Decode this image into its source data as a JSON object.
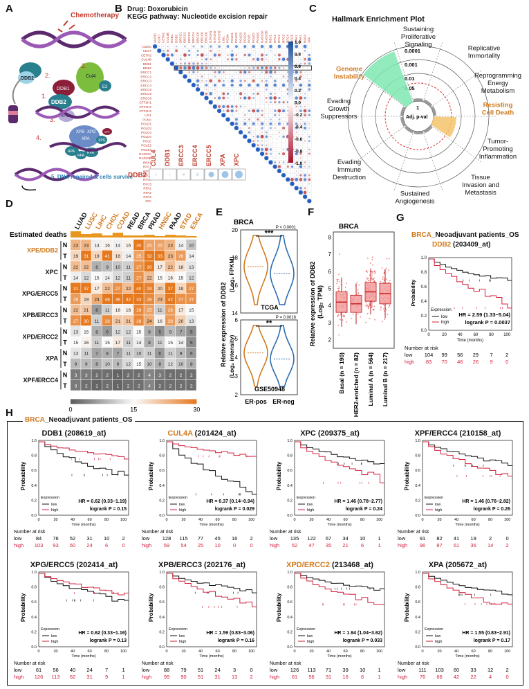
{
  "colors": {
    "orange": "#d07a1e",
    "red": "#c0392b",
    "low_line": "#111111",
    "high_line": "#d21f3c",
    "blue": "#2b6cb0"
  },
  "A": {
    "label": "A",
    "chemo": "Chemotherapy",
    "ddb2": "DDB2",
    "ddb1": "DDB1",
    "cul4": "Cul4",
    "e2": "E2",
    "ddb2b": "DDB2",
    "xpc": "XPC",
    "dna_label": "5. DNA repaired &\ncells survive",
    "steps": [
      "2.",
      "1.",
      "2.",
      "3.",
      "4.",
      "5."
    ],
    "proteins": [
      "XPB",
      "XPD",
      "XPA",
      "RPA",
      "XPG",
      "RPA",
      "RPA",
      "XPF"
    ]
  },
  "B": {
    "label": "B",
    "line1": "Drug: Doxorubicin",
    "line2": "KEGG pathway: Nucleotide excision repair",
    "genes": [
      "AUDIC",
      "CDK7",
      "CETN2",
      "CUL4B",
      "DDB1",
      "DDB2",
      "ERCC1",
      "ERCC2",
      "ERCC3",
      "ERCC4",
      "ERCC5",
      "ERCC6",
      "ERCC8",
      "GTF2H1",
      "GTF2H2",
      "GTF2H3",
      "LIG1",
      "PCNA",
      "POLD1",
      "POLD2",
      "POLD3",
      "POLD4",
      "POLE",
      "POLE2",
      "POLE3",
      "RAD23A",
      "RAD23B",
      "RBX1",
      "RFC1",
      "RFC2",
      "RFC3",
      "RFC4",
      "RFC5",
      "RPA1",
      "RPA2",
      "RPA3",
      "XPA"
    ],
    "scale": [
      "1.0",
      "0.8",
      "0.6",
      "0.4",
      "0.2",
      "0.0",
      "-0.2",
      "-0.4",
      "-0.6",
      "-0.8",
      "-1.0"
    ],
    "ddb2_row_label": "DDB2",
    "ddb2_cols": [
      "CUL4",
      "DDB1",
      "ERCC3",
      "ERCC4",
      "ERCC5",
      "XPA",
      "XPC"
    ]
  },
  "C": {
    "label": "C",
    "title": "Hallmark Enrichment Plot",
    "hallmarks": [
      "Sustaining\nProliferative\nSignaling",
      "Replicative\nImmortality",
      "Reprogramming\nEnergy\nMetabolism",
      "Resisting\nCell Death",
      "Tumor-\nPromoting\nInflammation",
      "Tissue\nInvasion and\nMetastasis",
      "Sustained\nAngiogenesis",
      "Evading\nImmune\nDestruction",
      "Evading\nGrowth\nSuppressors",
      "Genome\nInstability"
    ],
    "rings": [
      "0.0001",
      "0.001",
      "0.01",
      "0.05",
      "1"
    ],
    "center": "Adj. p-val"
  },
  "D": {
    "label": "D",
    "estimated_deaths": "Estimated deaths",
    "cancers": [
      "LUAD",
      "LUSC",
      "LIHC",
      "CHOL",
      "COAD",
      "READ",
      "BRCA",
      "PRAD",
      "HNSC",
      "PAAD",
      "STAD",
      "ESCA"
    ],
    "cancer_highlight": [
      false,
      true,
      true,
      true,
      true,
      false,
      false,
      false,
      true,
      false,
      true,
      true
    ],
    "groups": [
      "XPE/DDB2",
      "XPC",
      "XPG/ERCC5",
      "XPB/ERCC3",
      "XPD/ERCC2",
      "XPA",
      "XPF/ERCC4"
    ],
    "rows": [
      {
        "g": 0,
        "nt": "N",
        "v": [
          23,
          23,
          14,
          16,
          14,
          16,
          30,
          25,
          25,
          23,
          14,
          10
        ]
      },
      {
        "g": 0,
        "nt": "T",
        "v": [
          19,
          31,
          19,
          41,
          18,
          14,
          25,
          32,
          33,
          23,
          26,
          14
        ]
      },
      {
        "g": 1,
        "nt": "N",
        "v": [
          22,
          22,
          8,
          9,
          10,
          11,
          27,
          30,
          17,
          22,
          18,
          13
        ]
      },
      {
        "g": 1,
        "nt": "T",
        "v": [
          14,
          12,
          15,
          14,
          12,
          11,
          27,
          22,
          15,
          16,
          15,
          12
        ]
      },
      {
        "g": 2,
        "nt": "N",
        "v": [
          31,
          37,
          17,
          22,
          27,
          22,
          40,
          29,
          20,
          37,
          19,
          27
        ]
      },
      {
        "g": 2,
        "nt": "T",
        "v": [
          26,
          19,
          24,
          48,
          36,
          42,
          33,
          28,
          23,
          42,
          27,
          27
        ]
      },
      {
        "g": 3,
        "nt": "N",
        "v": [
          22,
          21,
          6,
          11,
          16,
          16,
          28,
          25,
          11,
          26,
          17,
          15
        ]
      },
      {
        "g": 3,
        "nt": "T",
        "v": [
          27,
          30,
          11,
          28,
          21,
          21,
          28,
          24,
          16,
          26,
          20,
          13
        ]
      },
      {
        "g": 4,
        "nt": "N",
        "v": [
          13,
          15,
          8,
          6,
          12,
          12,
          15,
          8,
          5,
          9,
          7,
          5
        ]
      },
      {
        "g": 4,
        "nt": "T",
        "v": [
          15,
          16,
          11,
          15,
          17,
          11,
          14,
          8,
          11,
          15,
          14,
          5
        ]
      },
      {
        "g": 5,
        "nt": "N",
        "v": [
          13,
          11,
          7,
          8,
          7,
          11,
          10,
          11,
          6,
          11,
          9,
          6
        ]
      },
      {
        "g": 5,
        "nt": "T",
        "v": [
          9,
          9,
          8,
          10,
          9,
          12,
          15,
          10,
          8,
          12,
          10,
          8
        ]
      },
      {
        "g": 6,
        "nt": "N",
        "v": [
          3,
          3,
          2,
          2,
          1,
          2,
          2,
          4,
          3,
          2,
          2,
          2
        ]
      },
      {
        "g": 6,
        "nt": "T",
        "v": [
          3,
          2,
          1,
          2,
          1,
          2,
          2,
          4,
          2,
          2,
          2,
          2
        ]
      }
    ],
    "scale": [
      "0",
      "15",
      "30"
    ]
  },
  "E": {
    "label": "E",
    "title": "BRCA",
    "ylab1": "Relative expression of DDB2",
    "ylab2_top": "(Log₂ FPKM)",
    "ylab2_bot": "(Log₂ intensity)",
    "top": {
      "dataset": "TCGA",
      "stars": "***",
      "p": "P < 0.0001",
      "yticks": [
        "14",
        "16",
        "18",
        "20"
      ]
    },
    "bot": {
      "dataset": "GSE50948",
      "stars": "**",
      "p": "P = 0.0016",
      "yticks": [
        "2",
        "3",
        "4",
        "5",
        "6"
      ]
    },
    "groups": [
      "ER-pos",
      "ER-neg"
    ]
  },
  "F": {
    "label": "F",
    "title": "BRCA",
    "ylab1": "Relative expression of DDB2",
    "ylab2": "(Log₂ TPM)",
    "yticks": [
      "2",
      "3",
      "4",
      "5",
      "6",
      "7",
      "8"
    ],
    "groups": [
      "Basal (n = 190)",
      "HER2-enriched (n = 82)",
      "Luminal A (n = 564)",
      "Luminal B (n = 217)"
    ]
  },
  "G": {
    "label": "G",
    "title_gene": "BRCA",
    "title_rest": "_Neoadjuvant patients_OS",
    "subtitle_gene": "DDB2",
    "subtitle_probe": " (203409_at)",
    "ylab": "Probability",
    "xlab": "Time (months)",
    "expr": "Expression",
    "low": "low",
    "high": "high",
    "hr": "HR = 2.59 (1.33−5.04)",
    "logrank": "logrank P = 0.0037",
    "risk_title": "Number at risk",
    "risk_low": [
      "104",
      "99",
      "56",
      "29",
      "7",
      "2"
    ],
    "risk_high": [
      "83",
      "70",
      "46",
      "26",
      "9",
      "0"
    ],
    "times": [
      "0",
      "20",
      "40",
      "60",
      "80",
      "100"
    ]
  },
  "H": {
    "label": "H",
    "title_gene": "BRCA",
    "title_rest": "_Neoadjuvant patients_OS",
    "ylab": "Probability",
    "xlab": "Time (months)",
    "expr": "Expression",
    "low": "low",
    "high": "high",
    "risk_title": "Number at risk",
    "times": [
      "0",
      "20",
      "40",
      "60",
      "80",
      "100"
    ],
    "panels": [
      {
        "gene": "DDB1",
        "probe": " (208619_at)",
        "orange": false,
        "hr": "HR = 0.62 (0.33−1.19)",
        "lr": "logrank P = 0.15",
        "rl": [
          "84",
          "76",
          "52",
          "31",
          "10",
          "2"
        ],
        "rh": [
          "103",
          "93",
          "50",
          "24",
          "6",
          "0"
        ]
      },
      {
        "gene": "CUL4A",
        "probe": " (201424_at)",
        "orange": true,
        "hr": "HR = 0.37 (0.14−0.94)",
        "lr": "logrank P = 0.029",
        "rl": [
          "128",
          "115",
          "77",
          "45",
          "16",
          "2"
        ],
        "rh": [
          "59",
          "54",
          "25",
          "10",
          "0",
          "0"
        ]
      },
      {
        "gene": "XPC",
        "probe": " (209375_at)",
        "orange": false,
        "hr": "HR = 1.46 (0.78−2.77)",
        "lr": "logrank P = 0.24",
        "rl": [
          "135",
          "122",
          "67",
          "34",
          "10",
          "1"
        ],
        "rh": [
          "52",
          "47",
          "35",
          "21",
          "6",
          "1"
        ]
      },
      {
        "gene": "XPF/ERCC4",
        "probe": " (210158_at)",
        "orange": false,
        "hr": "HR = 1.46 (0.76−2.82)",
        "lr": "logrank P = 0.26",
        "rl": [
          "91",
          "82",
          "41",
          "19",
          "2",
          "0"
        ],
        "rh": [
          "96",
          "87",
          "61",
          "36",
          "14",
          "2"
        ]
      },
      {
        "gene": "XPG/ERCC5",
        "probe": " (202414_at)",
        "orange": false,
        "hr": "HR = 0.62 (0.33−1.16)",
        "lr": "logrank P = 0.13",
        "rl": [
          "61",
          "56",
          "40",
          "24",
          "7",
          "1"
        ],
        "rh": [
          "126",
          "113",
          "62",
          "31",
          "9",
          "1"
        ]
      },
      {
        "gene": "XPB/ERCC3",
        "probe": " (202176_at)",
        "orange": false,
        "hr": "HR = 1.59 (0.83−3.06)",
        "lr": "logrank P = 0.16",
        "rl": [
          "88",
          "79",
          "51",
          "24",
          "3",
          "0"
        ],
        "rh": [
          "99",
          "90",
          "51",
          "31",
          "13",
          "2"
        ]
      },
      {
        "gene": "XPD/ERCC2",
        "probe": " (213468_at)",
        "orange": true,
        "hr": "HR = 1.94 (1.04−3.62)",
        "lr": "logrank P = 0.033",
        "rl": [
          "126",
          "113",
          "71",
          "39",
          "10",
          "1"
        ],
        "rh": [
          "61",
          "56",
          "31",
          "16",
          "6",
          "1"
        ]
      },
      {
        "gene": "XPA",
        "probe": " (205672_at)",
        "orange": false,
        "hr": "HR = 1.55 (0.83−2.91)",
        "lr": "logrank P = 0.17",
        "rl": [
          "111",
          "103",
          "60",
          "33",
          "12",
          "2"
        ],
        "rh": [
          "76",
          "66",
          "42",
          "22",
          "4",
          "0"
        ]
      }
    ]
  }
}
